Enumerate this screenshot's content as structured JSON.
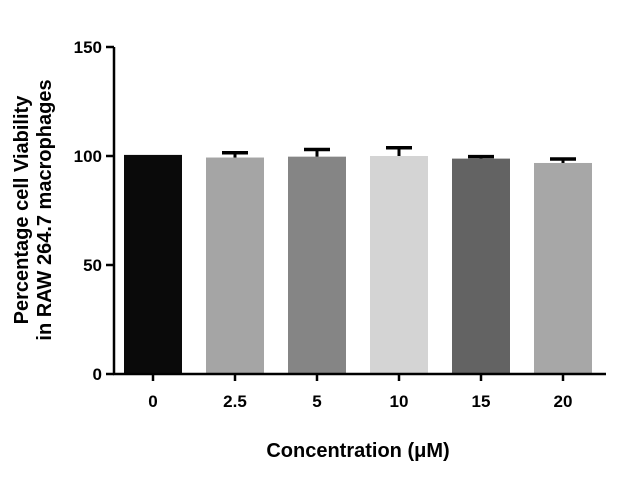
{
  "chart_data": {
    "type": "bar",
    "categories": [
      "0",
      "2.5",
      "5",
      "10",
      "15",
      "20"
    ],
    "values": [
      100.5,
      99.3,
      99.7,
      100.0,
      98.8,
      96.8
    ],
    "error": [
      0.3,
      2.2,
      3.3,
      3.8,
      0.9,
      1.8
    ],
    "bar_colors": [
      "#0a0a0a",
      "#a5a5a5",
      "#858585",
      "#d4d4d4",
      "#636363",
      "#a7a7a7"
    ],
    "ylim": [
      0,
      150
    ],
    "yticks": [
      "0",
      "50",
      "100",
      "150"
    ],
    "ylabel_line1": "Percentage cell Viability",
    "ylabel_line2": "in RAW 264.7 macrophages",
    "xlabel": "Concentration (μM)",
    "grid": false,
    "legend": "none"
  }
}
